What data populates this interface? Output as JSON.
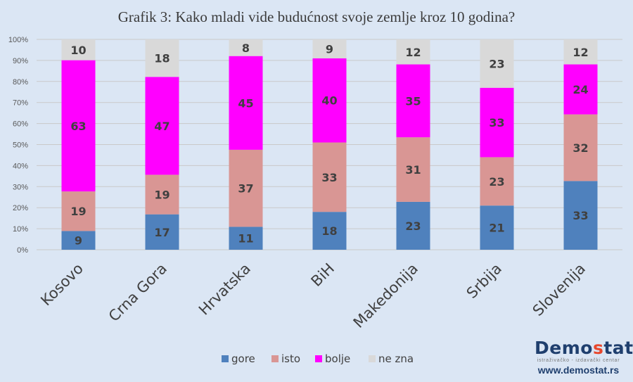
{
  "chart_data": {
    "type": "bar",
    "stacked": true,
    "percent_stacked": true,
    "title": "Grafik 3: Kako mladi vide budućnost svoje zemlje kroz 10 godina?",
    "categories": [
      "Kosovo",
      "Crna Gora",
      "Hrvatska",
      "BiH",
      "Makedonija",
      "Srbija",
      "Slovenija"
    ],
    "series": [
      {
        "name": "gore",
        "color": "#4f81bd",
        "values": [
          9,
          17,
          11,
          18,
          23,
          21,
          33
        ]
      },
      {
        "name": "isto",
        "color": "#d99694",
        "values": [
          19,
          19,
          37,
          33,
          31,
          23,
          32
        ]
      },
      {
        "name": "bolje",
        "color": "#ff00ff",
        "values": [
          63,
          47,
          45,
          40,
          35,
          33,
          24
        ]
      },
      {
        "name": "ne zna",
        "color": "#d9d9d9",
        "values": [
          10,
          18,
          8,
          9,
          12,
          23,
          12
        ]
      }
    ],
    "yticks": [
      "0%",
      "10%",
      "20%",
      "30%",
      "40%",
      "50%",
      "60%",
      "70%",
      "80%",
      "90%",
      "100%"
    ],
    "ylim": [
      0,
      100
    ],
    "grid": true,
    "legend": "bottom"
  },
  "logo": {
    "name_a": "Demo",
    "name_s": "s",
    "name_b": "tat",
    "subtitle": "istraživačko - izdavački centar",
    "url": "www.demostat.rs"
  }
}
